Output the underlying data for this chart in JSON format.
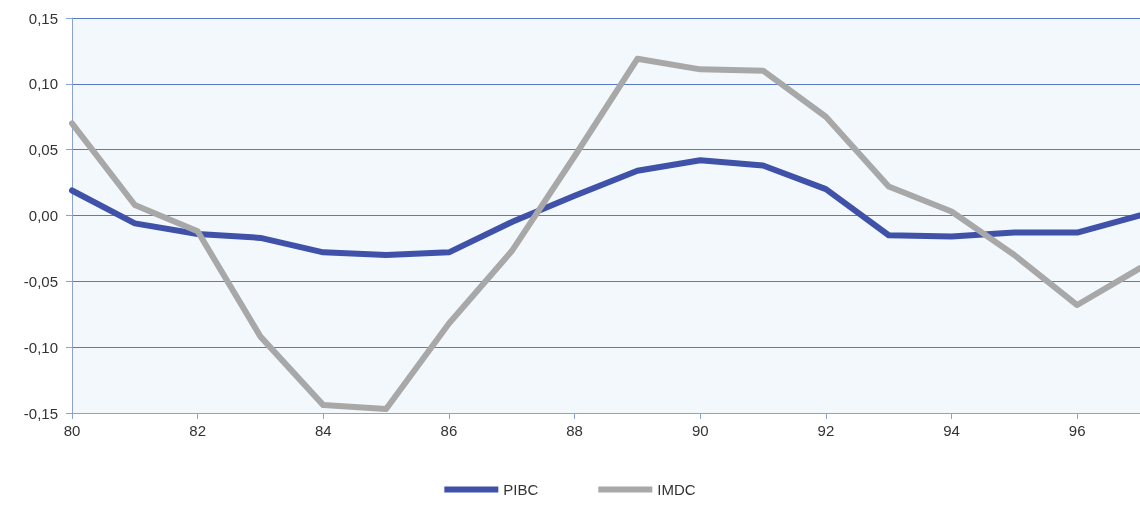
{
  "chart_data": {
    "type": "line",
    "x": [
      80,
      81,
      82,
      83,
      84,
      85,
      86,
      87,
      88,
      89,
      90,
      91,
      92,
      93,
      94,
      95,
      96,
      97
    ],
    "series": [
      {
        "name": "PIBC",
        "color": "#3f51a8",
        "values": [
          0.019,
          -0.006,
          -0.014,
          -0.017,
          -0.028,
          -0.03,
          -0.028,
          -0.005,
          0.015,
          0.034,
          0.042,
          0.038,
          0.02,
          -0.015,
          -0.016,
          -0.013,
          -0.013,
          0.0
        ]
      },
      {
        "name": "IMDC",
        "color": "#a8a8a8",
        "values": [
          0.07,
          0.008,
          -0.012,
          -0.092,
          -0.144,
          -0.147,
          -0.082,
          -0.027,
          0.045,
          0.119,
          0.111,
          0.11,
          0.075,
          0.022,
          0.003,
          -0.03,
          -0.068,
          -0.04
        ]
      }
    ],
    "xlim": [
      80,
      97
    ],
    "xticks": [
      80,
      82,
      84,
      86,
      88,
      90,
      92,
      94,
      96
    ],
    "ylim": [
      -0.15,
      0.15
    ],
    "yticks": [
      {
        "value": -0.15,
        "label": "-0,15"
      },
      {
        "value": -0.1,
        "label": "-0,10"
      },
      {
        "value": -0.05,
        "label": "-0,05"
      },
      {
        "value": 0,
        "label": "0,00"
      },
      {
        "value": 0.05,
        "label": "0,05"
      },
      {
        "value": 0.1,
        "label": "0,10"
      },
      {
        "value": 0.15,
        "label": "0,15"
      }
    ],
    "grid": "y",
    "legend": "bottom",
    "marker": "none",
    "line_style": "solid"
  }
}
